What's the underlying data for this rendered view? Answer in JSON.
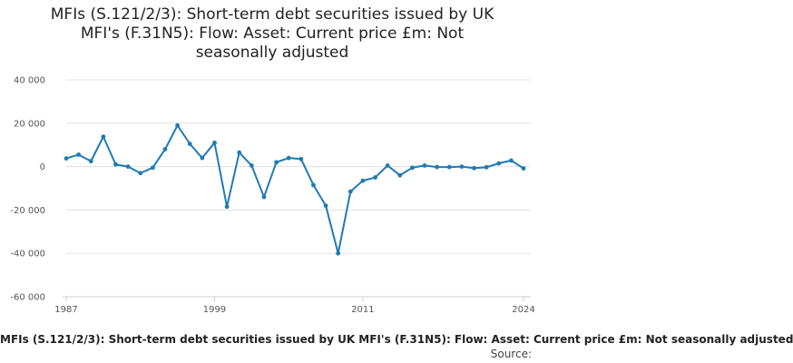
{
  "title_lines": [
    "MFIs (S.121/2/3): Short-term debt securities issued by UK",
    "MFI's (F.31N5): Flow: Asset: Current price £m: Not",
    "seasonally adjusted"
  ],
  "footer_label": "MFIs (S.121/2/3): Short-term debt securities issued by UK MFI's (F.31N5): Flow: Asset: Current price £m: Not seasonally adjusted",
  "source_label": "Source:",
  "chart_data": {
    "type": "line",
    "xlabel": "",
    "ylabel": "",
    "series": [
      {
        "color": "#1f7ab5",
        "x": [
          1987,
          1988,
          1989,
          1990,
          1991,
          1992,
          1993,
          1994,
          1995,
          1996,
          1997,
          1998,
          1999,
          2000,
          2001,
          2002,
          2003,
          2004,
          2005,
          2006,
          2007,
          2008,
          2009,
          2010,
          2011,
          2012,
          2013,
          2014,
          2015,
          2016,
          2017,
          2018,
          2019,
          2020,
          2021,
          2022,
          2023,
          2024
        ],
        "values": [
          3800,
          5500,
          2500,
          13800,
          1000,
          0,
          -3000,
          -500,
          8000,
          19000,
          10500,
          4000,
          11000,
          -18500,
          6500,
          500,
          -14000,
          2000,
          4000,
          3500,
          -8500,
          -18000,
          -40000,
          -11500,
          -6500,
          -5000,
          500,
          -4000,
          -500,
          500,
          -200,
          -200,
          0,
          -700,
          -300,
          1500,
          2800,
          -800
        ]
      }
    ],
    "y_ticks": [
      "40 000",
      "20 000",
      "0",
      "-20 000",
      "-40 000",
      "-60 000"
    ],
    "y_tick_values": [
      40000,
      20000,
      0,
      -20000,
      -40000,
      -60000
    ],
    "ylim": [
      -60000,
      40000
    ],
    "x_ticks": [
      "1987",
      "1999",
      "2011",
      "2024"
    ],
    "x_tick_values": [
      1987,
      1999,
      2011,
      2024
    ],
    "xlim": [
      1987,
      2024
    ],
    "grid": "horizontal",
    "line_color": "#1f7ab5"
  }
}
